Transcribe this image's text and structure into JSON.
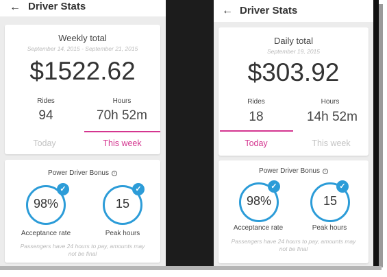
{
  "left": {
    "title": "Driver Stats",
    "back_icon": "arrow-left-icon",
    "summary": {
      "heading": "Weekly total",
      "date_range": "September 14, 2015 - September 21, 2015",
      "amount": "$1522.62"
    },
    "stats": [
      {
        "label": "Rides",
        "value": "94"
      },
      {
        "label": "Hours",
        "value": "70h 52m"
      }
    ],
    "tabs": [
      {
        "label": "Today",
        "selected": false
      },
      {
        "label": "This week",
        "selected": true
      }
    ],
    "bonus": {
      "title": "Power Driver Bonus",
      "info_glyph": "i",
      "rings": [
        {
          "value": "98%",
          "label": "Acceptance rate",
          "check": "✓"
        },
        {
          "value": "15",
          "label": "Peak hours",
          "check": "✓"
        }
      ],
      "note": "Passengers have 24 hours to pay, amounts may not be final"
    }
  },
  "right": {
    "title": "Driver Stats",
    "back_icon": "arrow-left-icon",
    "summary": {
      "heading": "Daily total",
      "date_range": "September 19, 2015",
      "amount": "$303.92"
    },
    "stats": [
      {
        "label": "Rides",
        "value": "18"
      },
      {
        "label": "Hours",
        "value": "14h 52m"
      }
    ],
    "tabs": [
      {
        "label": "Today",
        "selected": true
      },
      {
        "label": "This week",
        "selected": false
      }
    ],
    "bonus": {
      "title": "Power Driver Bonus",
      "info_glyph": "i",
      "rings": [
        {
          "value": "98%",
          "label": "Acceptance rate",
          "check": "✓"
        },
        {
          "value": "15",
          "label": "Peak hours",
          "check": "✓"
        }
      ],
      "note": "Passengers have 24 hours to pay, amounts may not be final"
    }
  },
  "colors": {
    "accent_pink": "#d4358f",
    "ring_blue": "#2c9cd8",
    "muted_text": "#b9b9b9"
  }
}
